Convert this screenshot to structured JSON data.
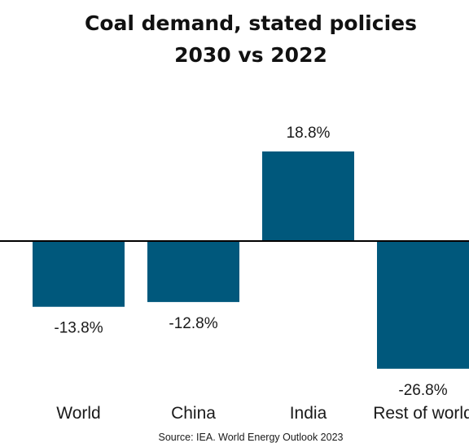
{
  "chart_data": {
    "type": "bar",
    "title_line1": "Coal demand, stated policies",
    "title_line2": "2030 vs 2022",
    "categories": [
      "World",
      "China",
      "India",
      "Rest of world"
    ],
    "values": [
      -13.8,
      -12.8,
      18.8,
      -26.8
    ],
    "data_labels": [
      "-13.8%",
      "-12.8%",
      "18.8%",
      "-26.8%"
    ],
    "source": "Source: IEA. World Energy Outlook 2023",
    "bar_color": "#00587c",
    "axis_color": "#000000",
    "grid": false,
    "legend": "none"
  }
}
